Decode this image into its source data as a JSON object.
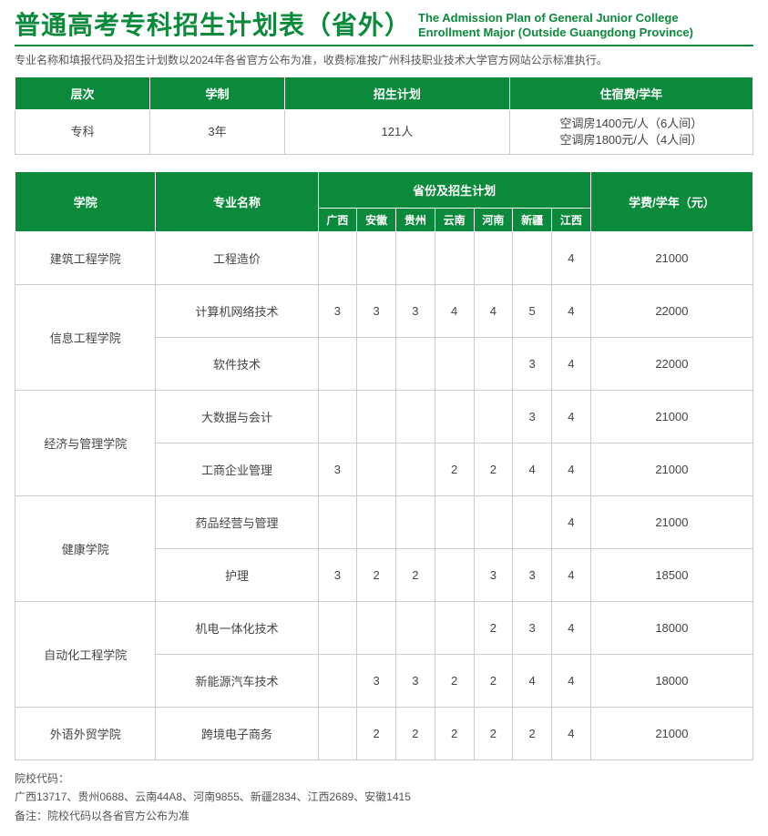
{
  "header": {
    "title_main": "普通高考专科招生计划表（省外）",
    "title_sub_line1": "The Admission Plan of General Junior College",
    "title_sub_line2": "Enrollment Major (Outside Guangdong Province)",
    "notice": "专业名称和填报代码及招生计划数以2024年各省官方公布为准，收费标准按广州科技职业技术大学官方网站公示标准执行。"
  },
  "summary": {
    "headers": [
      "层次",
      "学制",
      "招生计划",
      "住宿费/学年"
    ],
    "level": "专科",
    "duration": "3年",
    "plan": "121人",
    "dorm_line1": "空调房1400元/人（6人间）",
    "dorm_line2": "空调房1800元/人（4人间）"
  },
  "provinces": [
    "广西",
    "安徽",
    "贵州",
    "云南",
    "河南",
    "新疆",
    "江西"
  ],
  "main_headers": {
    "college": "学院",
    "major": "专业名称",
    "prov_plan": "省份及招生计划",
    "fee": "学费/学年（元）"
  },
  "colleges": [
    {
      "name": "建筑工程学院",
      "majors": [
        {
          "name": "工程造价",
          "cells": [
            "",
            "",
            "",
            "",
            "",
            "",
            "4"
          ],
          "fee": "21000"
        }
      ]
    },
    {
      "name": "信息工程学院",
      "majors": [
        {
          "name": "计算机网络技术",
          "cells": [
            "3",
            "3",
            "3",
            "4",
            "4",
            "5",
            "4"
          ],
          "fee": "22000"
        },
        {
          "name": "软件技术",
          "cells": [
            "",
            "",
            "",
            "",
            "",
            "3",
            "4"
          ],
          "fee": "22000"
        }
      ]
    },
    {
      "name": "经济与管理学院",
      "majors": [
        {
          "name": "大数据与会计",
          "cells": [
            "",
            "",
            "",
            "",
            "",
            "3",
            "4"
          ],
          "fee": "21000"
        },
        {
          "name": "工商企业管理",
          "cells": [
            "3",
            "",
            "",
            "2",
            "2",
            "4",
            "4"
          ],
          "fee": "21000"
        }
      ]
    },
    {
      "name": "健康学院",
      "majors": [
        {
          "name": "药品经营与管理",
          "cells": [
            "",
            "",
            "",
            "",
            "",
            "",
            "4"
          ],
          "fee": "21000"
        },
        {
          "name": "护理",
          "cells": [
            "3",
            "2",
            "2",
            "",
            "3",
            "3",
            "4"
          ],
          "fee": "18500"
        }
      ]
    },
    {
      "name": "自动化工程学院",
      "majors": [
        {
          "name": "机电一体化技术",
          "cells": [
            "",
            "",
            "",
            "",
            "2",
            "3",
            "4"
          ],
          "fee": "18000"
        },
        {
          "name": "新能源汽车技术",
          "cells": [
            "",
            "3",
            "3",
            "2",
            "2",
            "4",
            "4"
          ],
          "fee": "18000"
        }
      ]
    },
    {
      "name": "外语外贸学院",
      "majors": [
        {
          "name": "跨境电子商务",
          "cells": [
            "",
            "2",
            "2",
            "2",
            "2",
            "2",
            "4"
          ],
          "fee": "21000"
        }
      ]
    }
  ],
  "footer": {
    "label": "院校代码：",
    "codes": "广西13717、贵州0688、云南44A8、河南9855、新疆2834、江西2689、安徽1415",
    "remark": "备注：院校代码以各省官方公布为准"
  },
  "theme": {
    "brand_color": "#0a8a3a",
    "border_color": "#cccccc",
    "text_color": "#444444"
  }
}
